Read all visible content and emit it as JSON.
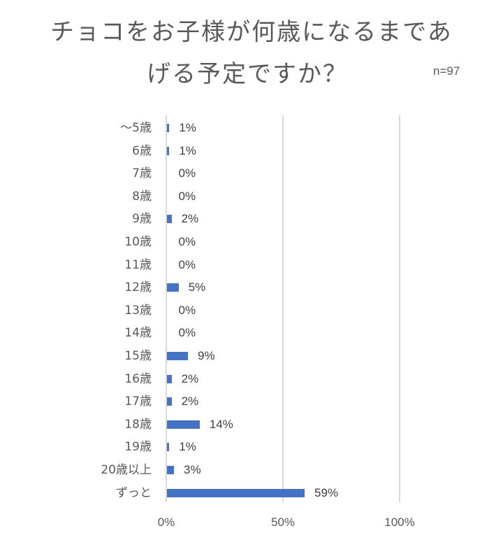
{
  "title": {
    "line1": "チョコをお子様が何歳になるまであ",
    "line2": "げる予定ですか？"
  },
  "sample_size": "n=97",
  "colors": {
    "bar": "#4472C4",
    "grid": "#D9D9D9",
    "text": "#595959"
  },
  "chart_data": {
    "type": "bar",
    "orientation": "horizontal",
    "title": "チョコをお子様が何歳になるまであげる予定ですか？",
    "annotation": "n=97",
    "categories": [
      "～5歳",
      "6歳",
      "7歳",
      "8歳",
      "9歳",
      "10歳",
      "11歳",
      "12歳",
      "13歳",
      "14歳",
      "15歳",
      "16歳",
      "17歳",
      "18歳",
      "19歳",
      "20歳以上",
      "ずっと"
    ],
    "values": [
      1,
      1,
      0,
      0,
      2,
      0,
      0,
      5,
      0,
      0,
      9,
      2,
      2,
      14,
      1,
      3,
      59
    ],
    "value_labels": [
      "1%",
      "1%",
      "0%",
      "0%",
      "2%",
      "0%",
      "0%",
      "5%",
      "0%",
      "0%",
      "9%",
      "2%",
      "2%",
      "14%",
      "1%",
      "3%",
      "59%"
    ],
    "xlabel": "",
    "ylabel": "",
    "xlim": [
      0,
      100
    ],
    "x_ticks": [
      "0%",
      "50%",
      "100%"
    ],
    "grid": true,
    "legend": null
  }
}
